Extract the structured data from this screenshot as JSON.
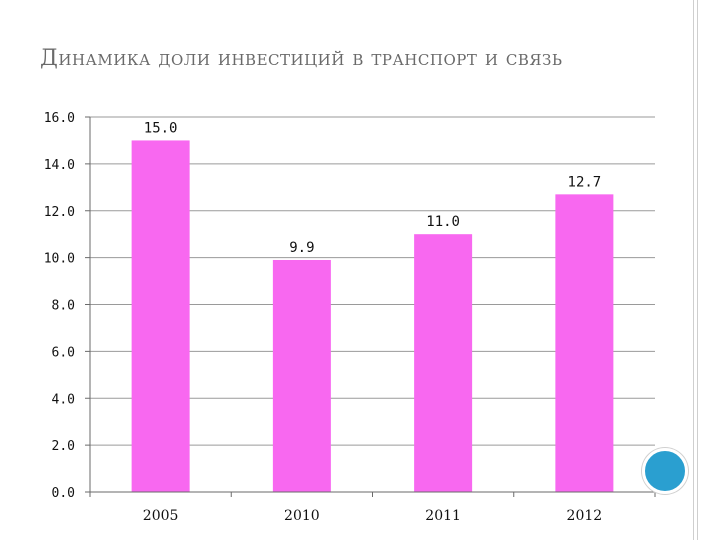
{
  "slide": {
    "title": "Динамика доли инвестиций в транспорт и связь"
  },
  "colors": {
    "bar": "#f868f0",
    "gridline": "#9a9a9a",
    "axis": "#6a6a6a",
    "decor_circle": "#2a9fd0"
  },
  "chart_data": {
    "type": "bar",
    "title": "Динамика доли инвестиций в транспорт и связь",
    "categories": [
      "2005",
      "2010",
      "2011",
      "2012"
    ],
    "values": [
      15.0,
      9.9,
      11.0,
      12.7
    ],
    "value_labels": [
      "15.0",
      "9.9",
      "11.0",
      "12.7"
    ],
    "y_ticks": [
      "0.0",
      "2.0",
      "4.0",
      "6.0",
      "8.0",
      "10.0",
      "12.0",
      "14.0",
      "16.0"
    ],
    "ylim": [
      0,
      16
    ],
    "grid": true,
    "legend": "none",
    "xlabel": "",
    "ylabel": ""
  }
}
